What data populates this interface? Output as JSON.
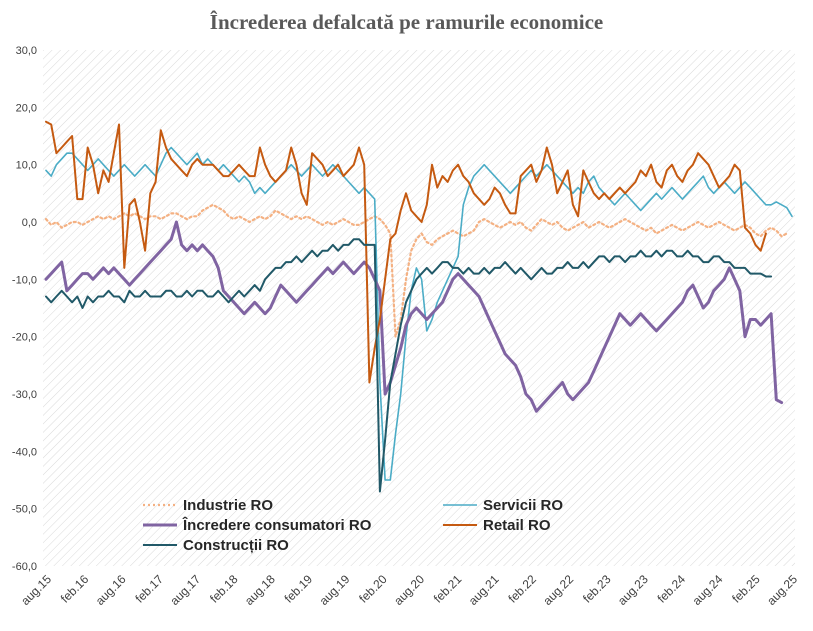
{
  "chart_data": {
    "type": "line",
    "title": "Încrederea defalcată pe ramurile economice",
    "xlabel": "",
    "ylabel": "",
    "ylim": [
      -60,
      30
    ],
    "yticks": [
      "30,0",
      "20,0",
      "10,0",
      "0,0",
      "-10,0",
      "-20,0",
      "-30,0",
      "-40,0",
      "-50,0",
      "-60,0"
    ],
    "x_start": "aug.15",
    "x_end": "aug.25",
    "x_tick_labels": [
      "aug.15",
      "feb.16",
      "aug.16",
      "feb.17",
      "aug.17",
      "feb.18",
      "aug.18",
      "feb.19",
      "aug.19",
      "feb.20",
      "aug.20",
      "feb.21",
      "aug.21",
      "feb.22",
      "aug.22",
      "feb.23",
      "aug.23",
      "feb.24",
      "aug.24",
      "feb.25",
      "aug.25"
    ],
    "grid": "hatched plot background",
    "legend": "inside-bottom-left",
    "series": [
      {
        "name": "Industrie RO",
        "color": "#F4B183",
        "style": "dotted",
        "width": 2.2,
        "values": [
          0.5,
          -0.5,
          0,
          -1,
          -0.5,
          0,
          0,
          -0.5,
          0,
          0.5,
          1,
          0.5,
          1,
          0.5,
          1,
          1.5,
          1,
          1.5,
          1,
          0.5,
          1,
          1,
          0.5,
          1,
          1.5,
          1.5,
          1,
          0.5,
          1,
          1,
          2,
          2.5,
          3,
          2.5,
          2,
          1,
          0.5,
          1,
          0.5,
          0,
          0.5,
          1,
          0.5,
          1,
          2,
          1.5,
          1,
          0.5,
          1,
          0.5,
          1,
          0.5,
          0,
          -0.5,
          0,
          -0.5,
          0,
          0.5,
          0,
          -0.5,
          -0.5,
          0,
          0.5,
          1,
          0.5,
          -0.5,
          -2,
          -20,
          -17,
          -10,
          -5,
          -3,
          -2,
          -3.5,
          -4,
          -3,
          -2.5,
          -2,
          -1.5,
          -2,
          -2.5,
          -2,
          -1.5,
          0,
          0.5,
          0,
          -0.5,
          -1,
          -0.5,
          0,
          -0.5,
          0,
          -1,
          -1.5,
          -0.5,
          0.5,
          0,
          -0.5,
          0,
          -1,
          -1.5,
          -1,
          -0.5,
          0,
          -1,
          -0.5,
          0,
          -0.5,
          -1,
          -0.5,
          0,
          0.5,
          0,
          -0.5,
          -1,
          -1.5,
          -1,
          -2,
          -1.5,
          -1,
          -0.5,
          -1,
          -1.5,
          -1,
          -0.5,
          0,
          -0.5,
          -1,
          -0.5,
          0,
          -0.5,
          -1,
          -1.5,
          -1,
          -0.5,
          -1,
          -2,
          -2.5,
          -1.5,
          -1,
          -1.5,
          -2.5,
          -2
        ]
      },
      {
        "name": "Servicii RO",
        "color": "#4BACC6",
        "style": "solid",
        "width": 1.6,
        "values": [
          9,
          8,
          10,
          11,
          12,
          12,
          11,
          10,
          9,
          10,
          11,
          10,
          9,
          8,
          9,
          10,
          9,
          8,
          9,
          10,
          9,
          8,
          10,
          12,
          13,
          12,
          11,
          10,
          11,
          12,
          10,
          11,
          10,
          9,
          10,
          9,
          8,
          7,
          8,
          7,
          5,
          6,
          5,
          6,
          7,
          8,
          9,
          10,
          9,
          8,
          9,
          10,
          9,
          8,
          9,
          10,
          9,
          8,
          7,
          6,
          5,
          6,
          5,
          4,
          -28,
          -45,
          -45,
          -37,
          -30,
          -20,
          -12,
          -8,
          -10,
          -19,
          -17,
          -14,
          -12,
          -10,
          -8,
          -6,
          3,
          6,
          8,
          9,
          10,
          9,
          8,
          7,
          6,
          5,
          6,
          7,
          8,
          9,
          8,
          9,
          10,
          9,
          8,
          7,
          6,
          5,
          6,
          5,
          7,
          8,
          6,
          5,
          4,
          3,
          4,
          5,
          4,
          3,
          2,
          3,
          4,
          5,
          4,
          5,
          6,
          5,
          4,
          5,
          6,
          7,
          8,
          6,
          5,
          6,
          7,
          6,
          5,
          6,
          7,
          6,
          5,
          4,
          3,
          3,
          3.5,
          3,
          2.5,
          1
        ]
      },
      {
        "name": "Încredere consumatori RO",
        "color": "#8064A2",
        "style": "solid",
        "width": 3,
        "values": [
          -10,
          -9,
          -8,
          -7,
          -12,
          -11,
          -10,
          -9,
          -9,
          -10,
          -9,
          -8,
          -9,
          -8,
          -9,
          -10,
          -11,
          -10,
          -9,
          -8,
          -7,
          -6,
          -5,
          -4,
          -3,
          0,
          -4,
          -5,
          -4,
          -5,
          -4,
          -5,
          -6,
          -8,
          -12,
          -13,
          -14,
          -15,
          -16,
          -15,
          -14,
          -15,
          -16,
          -15,
          -13,
          -11,
          -12,
          -13,
          -14,
          -13,
          -12,
          -11,
          -10,
          -9,
          -8,
          -9,
          -8,
          -7,
          -8,
          -9,
          -8,
          -7,
          -8,
          -10,
          -12,
          -30,
          -28,
          -25,
          -22,
          -18,
          -16,
          -15,
          -16,
          -17,
          -16,
          -15,
          -14,
          -12,
          -10,
          -9,
          -10,
          -11,
          -12,
          -13,
          -15,
          -17,
          -19,
          -21,
          -23,
          -24,
          -25,
          -27,
          -30,
          -31,
          -33,
          -32,
          -31,
          -30,
          -29,
          -28,
          -30,
          -31,
          -30,
          -29,
          -28,
          -26,
          -24,
          -22,
          -20,
          -18,
          -16,
          -17,
          -18,
          -17,
          -16,
          -17,
          -18,
          -19,
          -18,
          -17,
          -16,
          -15,
          -14,
          -12,
          -11,
          -13,
          -15,
          -14,
          -12,
          -11,
          -10,
          -8,
          -10,
          -12,
          -20,
          -17,
          -17,
          -18,
          -17,
          -16,
          -31,
          -31.5
        ]
      },
      {
        "name": "Retail RO",
        "color": "#C55A11",
        "style": "solid",
        "width": 2,
        "values": [
          17.5,
          17,
          12,
          13,
          14,
          15,
          4,
          4,
          13,
          10,
          5,
          9,
          7,
          12,
          17,
          -8,
          3,
          4,
          0,
          -5,
          5,
          7,
          16,
          13,
          11,
          10,
          9,
          8,
          10,
          11,
          10,
          10,
          10,
          9,
          8,
          8,
          9,
          10,
          9,
          8,
          8,
          13,
          10,
          8,
          7,
          8,
          9,
          13,
          10,
          5,
          3,
          12,
          11,
          10,
          8,
          9,
          10,
          8,
          9,
          10,
          13,
          10,
          -28,
          -22,
          -17,
          -10,
          -3,
          -2,
          2,
          5,
          2,
          1,
          0,
          3,
          10,
          6,
          8,
          7,
          9,
          10,
          8,
          7,
          5,
          4,
          3,
          4,
          6,
          5,
          3,
          1.5,
          1.5,
          8,
          9,
          10,
          7,
          9,
          13,
          10,
          5,
          7,
          9,
          3,
          1,
          9,
          7,
          5,
          4,
          5,
          4,
          5,
          6,
          5,
          6,
          7,
          9,
          8,
          10,
          7,
          6,
          9,
          10,
          8,
          7,
          9,
          10,
          12,
          11,
          10,
          8,
          6,
          7,
          8,
          10,
          9,
          -1,
          -2,
          -4,
          -5,
          -2
        ]
      },
      {
        "name": "Construcții RO",
        "color": "#215968",
        "style": "solid",
        "width": 2,
        "values": [
          -13,
          -14,
          -13,
          -12,
          -13,
          -14,
          -13,
          -15,
          -13,
          -14,
          -13,
          -13,
          -12,
          -13,
          -13,
          -14,
          -12,
          -13,
          -13,
          -12,
          -13,
          -13,
          -13,
          -12,
          -12,
          -13,
          -13,
          -12,
          -13,
          -12,
          -12,
          -13,
          -13,
          -12,
          -13,
          -14,
          -13,
          -12,
          -13,
          -12,
          -11,
          -12,
          -10,
          -9,
          -8,
          -8,
          -7,
          -7,
          -6,
          -7,
          -6,
          -5,
          -6,
          -5,
          -5,
          -4,
          -5,
          -4,
          -4,
          -3,
          -3,
          -4,
          -4,
          -4,
          -47,
          -38,
          -28,
          -23,
          -18,
          -14,
          -12,
          -10,
          -9,
          -8,
          -9,
          -8,
          -7,
          -7,
          -8,
          -8,
          -9,
          -8,
          -9,
          -9,
          -8,
          -9,
          -8,
          -8,
          -7,
          -8,
          -9,
          -8,
          -9,
          -10,
          -9,
          -8,
          -9,
          -9,
          -8,
          -8,
          -7,
          -8,
          -8,
          -7,
          -8,
          -7,
          -6,
          -6,
          -7,
          -6,
          -6,
          -7,
          -6,
          -6,
          -5,
          -6,
          -6,
          -5,
          -6,
          -5,
          -5,
          -6,
          -6,
          -5,
          -6,
          -6,
          -7,
          -7,
          -6,
          -6,
          -7,
          -7,
          -8,
          -8,
          -8,
          -9,
          -9,
          -9,
          -9.5,
          -9.5
        ]
      }
    ],
    "legend_rows": [
      [
        "Industrie RO",
        "Servicii RO"
      ],
      [
        "Încredere consumatori RO",
        "Retail RO"
      ],
      [
        "Construcții RO"
      ]
    ]
  }
}
